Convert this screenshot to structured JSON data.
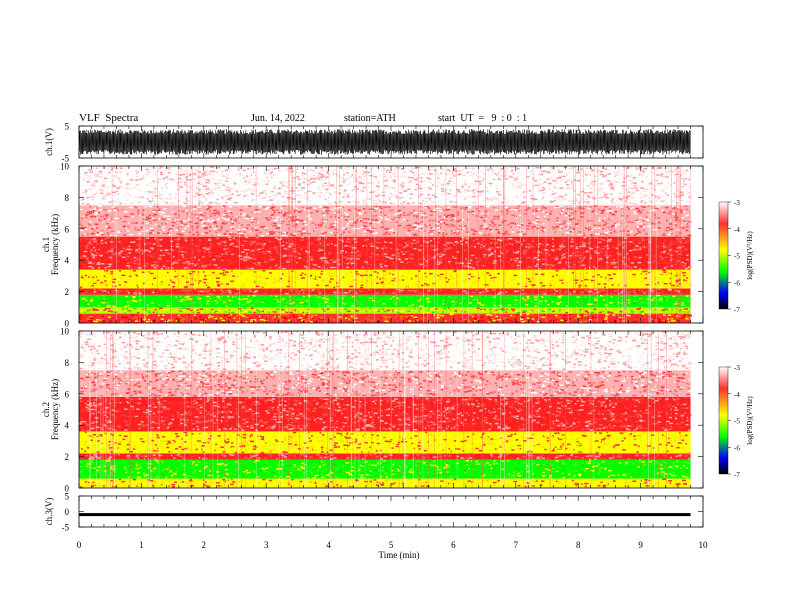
{
  "header": {
    "title": "VLF  Spectra",
    "date": "Jun. 14, 2022",
    "station": "station=ATH",
    "start": "start  UT  =   9  : 0  : 1"
  },
  "colorbar": {
    "label": "log(PSD)(V²/Hz)",
    "ticks": [
      "-3",
      "-4",
      "-5",
      "-6",
      "-7"
    ],
    "colors": [
      "#ffffff",
      "#ff3030",
      "#ffff00",
      "#00ff00",
      "#0000ff",
      "#000000"
    ]
  },
  "chart_data": [
    {
      "type": "line",
      "name": "ch1-waveform",
      "ylabel": "ch.1(V)",
      "ylim": [
        -5,
        5
      ],
      "y_ticks": [
        "5",
        "-5"
      ],
      "note_values": "dense oscillating waveform spanning approximately -4 to +4 V over 0 to 9.8 min"
    },
    {
      "type": "heatmap",
      "name": "ch1-spectrogram",
      "ylabel": "ch.1 Frequency  (kHz)",
      "ylim": [
        0,
        10
      ],
      "y_ticks": [
        "0",
        "2",
        "4",
        "6",
        "8",
        "10"
      ],
      "bands": [
        {
          "range_khz": [
            0,
            0.6
          ],
          "level": "red-yellow"
        },
        {
          "range_khz": [
            0.6,
            1.0
          ],
          "level": "yellow-green"
        },
        {
          "range_khz": [
            1.0,
            1.8
          ],
          "level": "green"
        },
        {
          "range_khz": [
            1.8,
            2.2
          ],
          "level": "red"
        },
        {
          "range_khz": [
            2.2,
            3.4
          ],
          "level": "yellow"
        },
        {
          "range_khz": [
            3.4,
            5.5
          ],
          "level": "red"
        },
        {
          "range_khz": [
            5.5,
            7.5
          ],
          "level": "light-red"
        },
        {
          "range_khz": [
            7.5,
            10
          ],
          "level": "pale-red"
        }
      ]
    },
    {
      "type": "heatmap",
      "name": "ch2-spectrogram",
      "ylabel": "ch.2 Frequency  (kHz)",
      "ylim": [
        0,
        10
      ],
      "y_ticks": [
        "0",
        "2",
        "4",
        "6",
        "8",
        "10"
      ],
      "bands": [
        {
          "range_khz": [
            0,
            0.6
          ],
          "level": "yellow"
        },
        {
          "range_khz": [
            0.6,
            1.8
          ],
          "level": "green"
        },
        {
          "range_khz": [
            1.8,
            2.2
          ],
          "level": "red"
        },
        {
          "range_khz": [
            2.2,
            3.6
          ],
          "level": "yellow"
        },
        {
          "range_khz": [
            3.6,
            5.8
          ],
          "level": "red"
        },
        {
          "range_khz": [
            5.8,
            7.5
          ],
          "level": "light-red"
        },
        {
          "range_khz": [
            7.5,
            10
          ],
          "level": "pale-red"
        }
      ]
    },
    {
      "type": "line",
      "name": "ch3-waveform",
      "ylabel": "ch.3(V)",
      "ylim": [
        -5,
        5
      ],
      "y_ticks": [
        "5",
        "0",
        "-5"
      ],
      "note_values": "near-constant signal at about -1 V over 0 to 9.8 min"
    }
  ],
  "x_axis": {
    "label": "Time  (min)",
    "ticks": [
      "0",
      "1",
      "2",
      "3",
      "4",
      "5",
      "6",
      "7",
      "8",
      "9",
      "10"
    ],
    "range": [
      0,
      10
    ],
    "data_end": 9.8
  }
}
